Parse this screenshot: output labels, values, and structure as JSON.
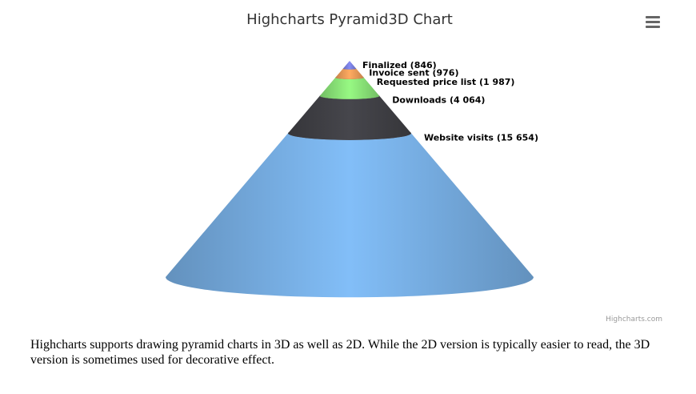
{
  "chart_data": {
    "type": "pyramid3d",
    "title": "Highcharts Pyramid3D Chart",
    "categories": [
      "Website visits",
      "Downloads",
      "Requested price list",
      "Invoice sent",
      "Finalized"
    ],
    "values": [
      15654,
      4064,
      1987,
      976,
      846
    ],
    "value_labels": [
      "(15 654)",
      "(4 064)",
      "(1 987)",
      "(976)",
      "(846)"
    ],
    "colors": [
      "#7cb5ec",
      "#434348",
      "#90ed7d",
      "#f7a35c",
      "#8085e9"
    ],
    "credits": "Highcharts.com"
  },
  "caption": "Highcharts supports drawing pyramid charts in 3D as well as 2D. While the 2D version is typically easier to read, the 3D version is sometimes used for decorative effect."
}
